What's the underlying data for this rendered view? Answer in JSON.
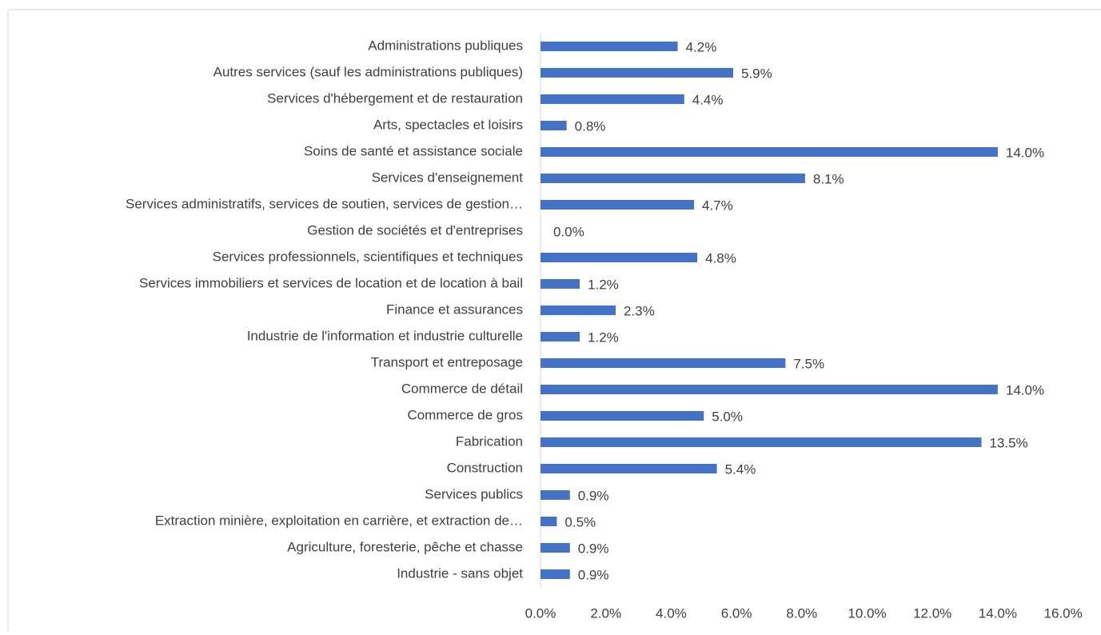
{
  "chart_data": {
    "type": "bar",
    "orientation": "horizontal",
    "color": "#4472c4",
    "categories": [
      "Administrations publiques",
      "Autres services (sauf les administrations publiques)",
      "Services d'hébergement et de restauration",
      "Arts, spectacles et loisirs",
      "Soins de santé et assistance sociale",
      "Services d'enseignement",
      "Services administratifs, services de soutien, services de gestion…",
      "Gestion de sociétés et d'entreprises",
      "Services professionnels, scientifiques et techniques",
      "Services immobiliers et services de location et de location à bail",
      "Finance et assurances",
      "Industrie de l'information et industrie culturelle",
      "Transport et entreposage",
      "Commerce de détail",
      "Commerce de gros",
      "Fabrication",
      "Construction",
      "Services publics",
      "Extraction minière, exploitation en carrière, et extraction de…",
      "Agriculture, foresterie, pêche et chasse",
      "Industrie - sans objet"
    ],
    "values": [
      4.2,
      5.9,
      4.4,
      0.8,
      14.0,
      8.1,
      4.7,
      0.0,
      4.8,
      1.2,
      2.3,
      1.2,
      7.5,
      14.0,
      5.0,
      13.5,
      5.4,
      0.9,
      0.5,
      0.9,
      0.9
    ],
    "value_labels": [
      "4.2%",
      "5.9%",
      "4.4%",
      "0.8%",
      "14.0%",
      "8.1%",
      "4.7%",
      "0.0%",
      "4.8%",
      "1.2%",
      "2.3%",
      "1.2%",
      "7.5%",
      "14.0%",
      "5.0%",
      "13.5%",
      "5.4%",
      "0.9%",
      "0.5%",
      "0.9%",
      "0.9%"
    ],
    "xlim": [
      0,
      16
    ],
    "xticks": [
      {
        "value": 0,
        "label": "0.0%"
      },
      {
        "value": 2,
        "label": "2.0%"
      },
      {
        "value": 4,
        "label": "4.0%"
      },
      {
        "value": 6,
        "label": "6.0%"
      },
      {
        "value": 8,
        "label": "8.0%"
      },
      {
        "value": 10,
        "label": "10.0%"
      },
      {
        "value": 12,
        "label": "12.0%"
      },
      {
        "value": 14,
        "label": "14.0%"
      },
      {
        "value": 16,
        "label": "16.0%"
      }
    ]
  }
}
